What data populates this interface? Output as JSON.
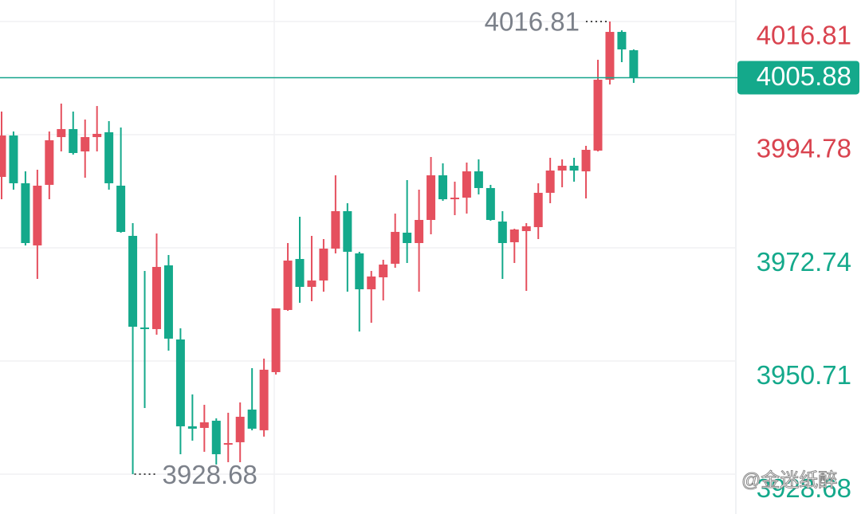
{
  "chart_data": {
    "type": "candlestick",
    "categories": [
      null,
      null,
      null,
      null,
      null,
      null,
      null,
      null,
      null,
      null,
      null,
      null,
      null,
      null,
      null,
      null,
      null,
      null,
      null,
      null,
      null,
      null,
      null,
      null,
      null,
      null,
      null,
      null,
      null,
      null,
      null,
      null,
      null,
      null,
      null,
      null,
      null,
      null,
      null,
      null,
      null,
      null,
      null,
      null,
      null,
      null,
      null,
      null,
      null,
      null,
      null,
      null,
      null,
      null
    ],
    "open": [
      3986.56,
      3994.62,
      3985.32,
      3973.22,
      3985.01,
      3994.31,
      3995.87,
      3991.52,
      3994.31,
      3995.25,
      3984.85,
      3975.08,
      3957.24,
      3956.93,
      3969.34,
      3954.91,
      3938.0,
      3937.69,
      3939.09,
      3934.59,
      3934.9,
      3941.26,
      3937.23,
      3948.55,
      3960.65,
      3970.58,
      3965.15,
      3966.39,
      3972.6,
      3979.89,
      3971.67,
      3964.68,
      3967.01,
      3969.65,
      3975.7,
      3973.68,
      3978.18,
      3986.87,
      3982.21,
      3982.52,
      3987.64,
      3984.39,
      3977.87,
      3973.84,
      3976.01,
      3976.78,
      3983.46,
      3987.8,
      3988.73,
      3987.64,
      3991.68,
      4005.48,
      4014.79,
      4011.22
    ],
    "high": [
      3999.28,
      3995.4,
      3987.64,
      3987.95,
      3995.4,
      4000.83,
      3999.28,
      3997.73,
      4000.36,
      3997.42,
      3996.18,
      3977.56,
      3968.25,
      3975.54,
      3971.36,
      3957.08,
      3944.21,
      3942.19,
      3939.55,
      3940.64,
      3942.66,
      3949.33,
      3951.19,
      3960.96,
      3973.68,
      3978.8,
      3975.08,
      3974.46,
      3986.87,
      3981.44,
      3971.98,
      3968.25,
      3970.42,
      3979.42,
      3985.94,
      3984.08,
      3990.44,
      3989.2,
      3985.63,
      3989.35,
      3989.97,
      3985.01,
      3979.89,
      3976.47,
      3977.56,
      3985.32,
      3990.28,
      3989.97,
      3990.28,
      3992.61,
      4009.36,
      4016.81,
      4015.1,
      4011.38
    ],
    "low": [
      3982.21,
      3984.08,
      3973.22,
      3966.7,
      3982.21,
      3991.52,
      3990.9,
      3986.4,
      3991.52,
      3984.08,
      3975.7,
      3928.68,
      3941.57,
      3955.84,
      3952.74,
      3932.57,
      3935.21,
      3933.04,
      3930.56,
      3931.02,
      3931.02,
      3937.23,
      3935.99,
      3948.09,
      3960.5,
      3962.05,
      3962.36,
      3964.22,
      3971.67,
      3964.22,
      3956.46,
      3958.17,
      3962.51,
      3968.87,
      3969.8,
      3964.22,
      3975.39,
      3981.9,
      3979.11,
      3979.42,
      3983.15,
      3978.03,
      3966.7,
      3969.8,
      3964.37,
      3974.46,
      3981.44,
      3984.54,
      3985.63,
      3982.37,
      3991.52,
      4004.55,
      4008.9,
      4004.86
    ],
    "close": [
      3994.62,
      3985.32,
      3973.68,
      3984.85,
      3993.69,
      3995.87,
      3991.21,
      3994.31,
      3994.94,
      3985.32,
      3975.85,
      3957.39,
      3956.93,
      3969.03,
      3955.07,
      3938.0,
      3937.54,
      3938.78,
      3932.57,
      3934.74,
      3939.86,
      3937.54,
      3949.02,
      3960.96,
      3970.27,
      3965.15,
      3966.39,
      3972.6,
      3979.89,
      3971.98,
      3964.68,
      3967.17,
      3969.49,
      3975.85,
      3973.68,
      3978.18,
      3986.87,
      3982.21,
      3982.52,
      3987.64,
      3984.39,
      3978.18,
      3973.68,
      3976.32,
      3976.94,
      3983.46,
      3987.8,
      3988.73,
      3987.8,
      3991.83,
      4005.48,
      4014.79,
      4011.38,
      4005.88
    ],
    "up_color": "#e5505e",
    "down_color": "#14a98b",
    "ylim": [
      3920.93,
      4021.0
    ],
    "yticks": [
      3928.68,
      3950.71,
      3972.74,
      3994.78,
      4016.81
    ],
    "ytick_colors": [
      "#14a98b",
      "#14a98b",
      "#14a98b",
      "#d9434f",
      "#d9434f"
    ],
    "grid": true,
    "last_price": 4005.88,
    "max_label": 4016.81,
    "min_label": 3928.68,
    "watermark": "@金迷纸醉"
  }
}
